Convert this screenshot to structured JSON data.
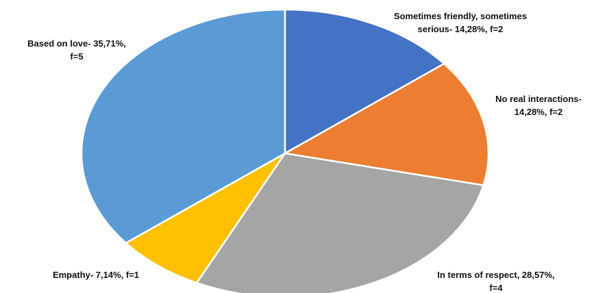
{
  "chart_data": {
    "type": "pie",
    "title": "",
    "slices": [
      {
        "name": "Sometimes friendly, sometimes serious",
        "percent": 14.28,
        "f": 2,
        "color": "#4472C4",
        "label_lines": [
          "Sometimes friendly, sometimes",
          "serious- 14,28%, f=2"
        ]
      },
      {
        "name": "No real interactions",
        "percent": 14.28,
        "f": 2,
        "color": "#ED7D31",
        "label_lines": [
          "No real interactions-",
          "14,28%, f=2"
        ]
      },
      {
        "name": "In terms of respect",
        "percent": 28.57,
        "f": 4,
        "color": "#A5A5A5",
        "label_lines": [
          "In terms of respect, 28,57%,",
          "f=4"
        ]
      },
      {
        "name": "Empathy",
        "percent": 7.14,
        "f": 1,
        "color": "#FFC000",
        "label_lines": [
          "Empathy- 7,14%, f=1"
        ]
      },
      {
        "name": "Based on love",
        "percent": 35.71,
        "f": 5,
        "color": "#5B9BD5",
        "label_lines": [
          "Based on love- 35,71%,",
          "f=5"
        ]
      }
    ]
  }
}
